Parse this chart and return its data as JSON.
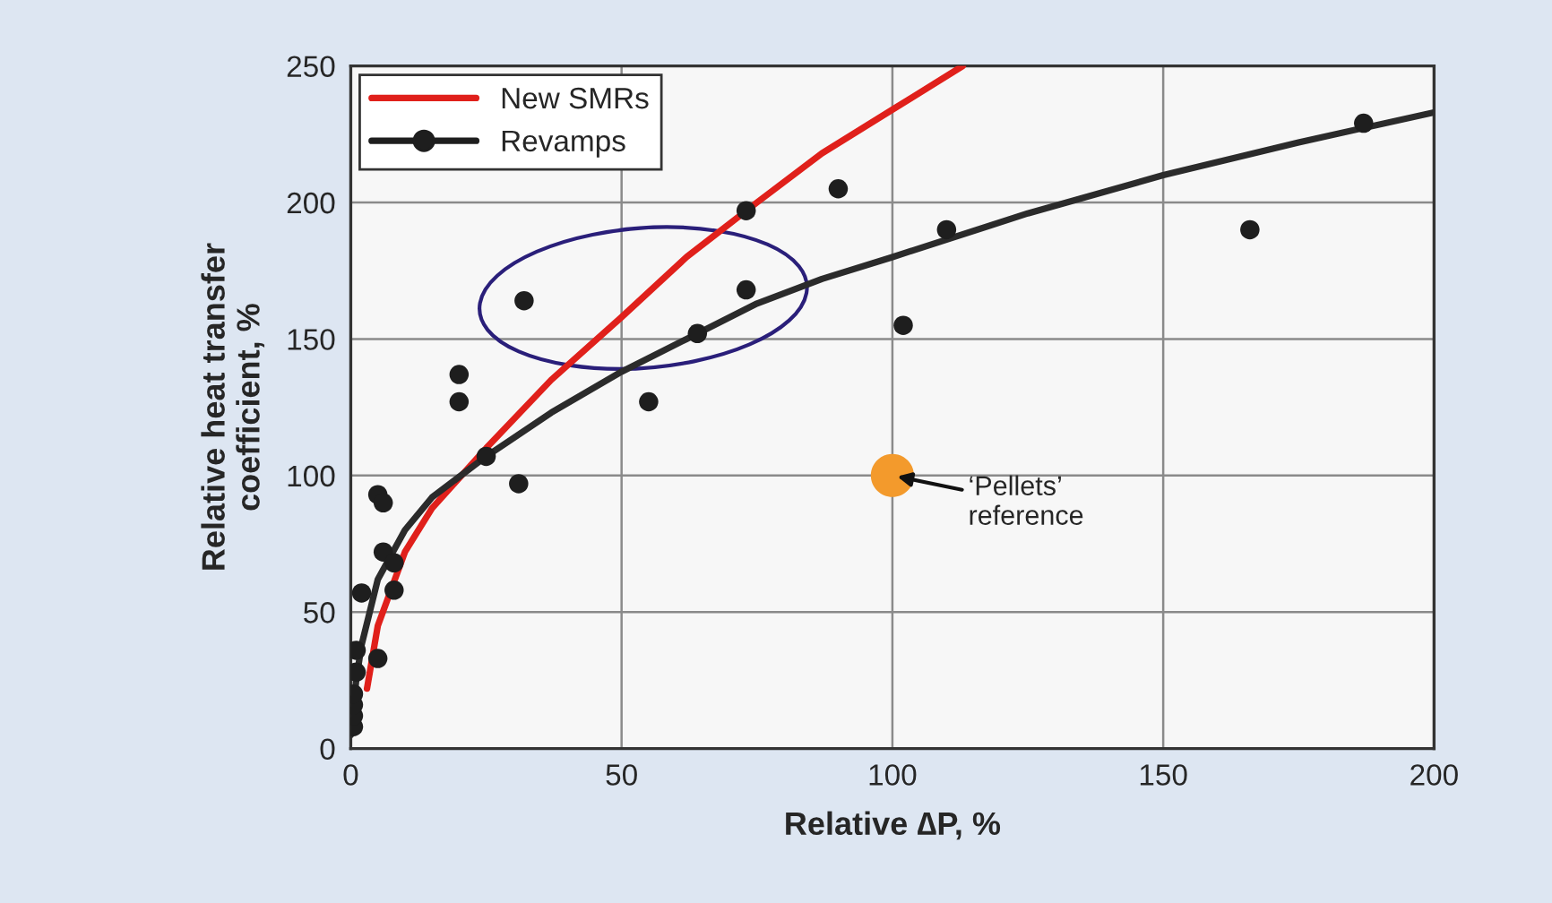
{
  "chart_data": {
    "type": "scatter",
    "xlabel": "Relative ∆P, %",
    "ylabel": "Relative heat transfer\ncoefficient, %",
    "xlim": [
      0,
      200
    ],
    "ylim": [
      0,
      250
    ],
    "xticks": [
      0,
      50,
      100,
      150,
      200
    ],
    "yticks": [
      0,
      50,
      100,
      150,
      200,
      250
    ],
    "grid": true,
    "legend": "top left",
    "series": [
      {
        "name": "New SMRs",
        "type": "line",
        "color": "#e0201b",
        "x": [
          3,
          5,
          10,
          15,
          25,
          37,
          50,
          62,
          75,
          87,
          100,
          113
        ],
        "values": [
          22,
          45,
          72,
          88,
          110,
          135,
          158,
          180,
          200,
          218,
          234,
          250
        ]
      },
      {
        "name": "Revamps",
        "marker": "circle",
        "color": "#1e1e1e",
        "x": [
          0.5,
          0.5,
          0.5,
          0.5,
          1,
          1,
          2,
          5,
          5,
          6,
          6,
          8,
          8,
          20,
          20,
          25,
          31,
          32,
          55,
          64,
          73,
          73,
          90,
          102,
          110,
          166,
          187
        ],
        "values": [
          8,
          12,
          16,
          20,
          28,
          36,
          57,
          33,
          93,
          90,
          72,
          68,
          58,
          137,
          127,
          107,
          97,
          164,
          127,
          152,
          197,
          168,
          205,
          155,
          190,
          190,
          229
        ]
      },
      {
        "type": "line",
        "color": "#2b2b2b",
        "x": [
          0,
          1,
          2,
          5,
          10,
          15,
          25,
          37,
          50,
          62,
          75,
          87,
          100,
          125,
          150,
          175,
          200
        ],
        "values": [
          5,
          25,
          38,
          62,
          80,
          92,
          107,
          123,
          138,
          150,
          163,
          172,
          180,
          196,
          210,
          222,
          233
        ]
      },
      {
        "marker": "circle",
        "color": "#f39a2c",
        "x": [
          100
        ],
        "values": [
          100
        ]
      }
    ],
    "annotations": [
      {
        "text": "‘Pellets’\nreference",
        "x": 100,
        "y": 100
      }
    ]
  }
}
